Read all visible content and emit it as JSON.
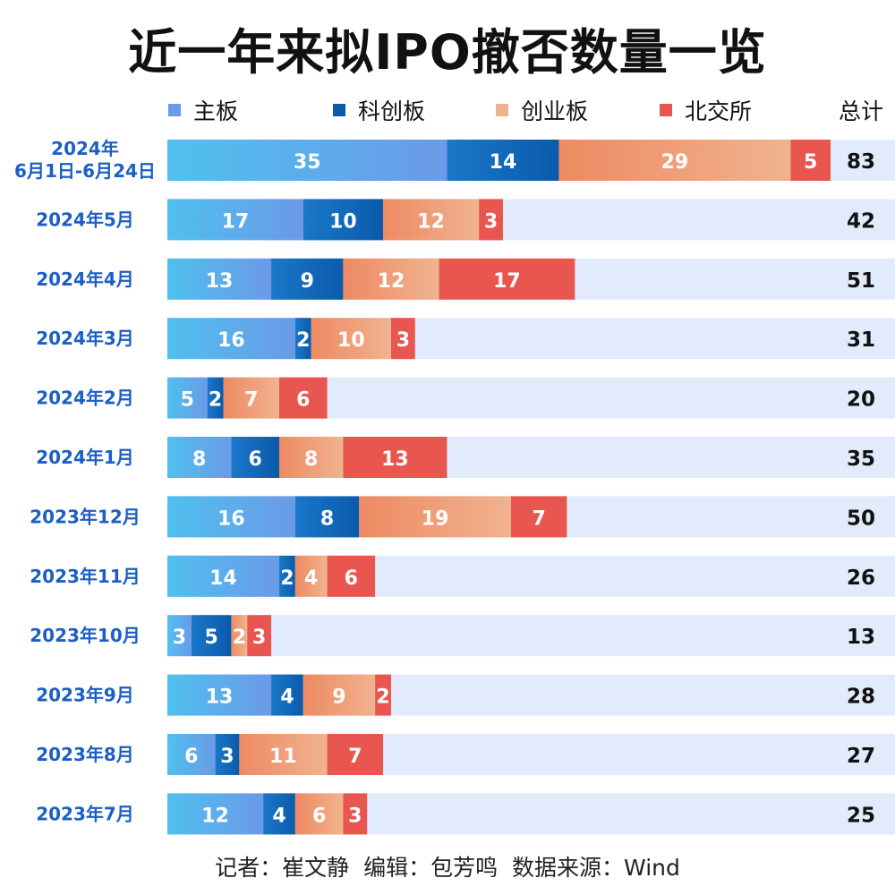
{
  "title": "近一年来拟IPO撤否数量一览",
  "legend": {
    "series": [
      "主板",
      "科创板",
      "创业板",
      "北交所"
    ],
    "total_label": "总计"
  },
  "footer": {
    "reporter": "记者：崔文静",
    "editor": "编辑：包芳鸣",
    "source": "数据来源：Wind"
  },
  "colors": {
    "main_board_start": "#4fc0ee",
    "main_board_end": "#6b9ae8",
    "star_start": "#1a78c8",
    "star_end": "#0b5aab",
    "chinext_start": "#ee8a62",
    "chinext_end": "#f0b38f",
    "bse": "#e8564f",
    "track": "#e1ebfb",
    "label_blue": "#1c5fc4"
  },
  "chart_data": {
    "type": "bar",
    "orientation": "horizontal",
    "stacked": true,
    "categories": [
      "2024年\n6月1日-6月24日",
      "2024年5月",
      "2024年4月",
      "2024年3月",
      "2024年2月",
      "2024年1月",
      "2023年12月",
      "2023年11月",
      "2023年10月",
      "2023年9月",
      "2023年8月",
      "2023年7月"
    ],
    "series": [
      {
        "name": "主板",
        "values": [
          35,
          17,
          13,
          16,
          5,
          8,
          16,
          14,
          3,
          13,
          6,
          12
        ]
      },
      {
        "name": "科创板",
        "values": [
          14,
          10,
          9,
          2,
          2,
          6,
          8,
          2,
          5,
          4,
          3,
          4
        ]
      },
      {
        "name": "创业板",
        "values": [
          29,
          12,
          12,
          10,
          7,
          8,
          19,
          4,
          2,
          9,
          11,
          6
        ]
      },
      {
        "name": "北交所",
        "values": [
          5,
          3,
          17,
          3,
          6,
          13,
          7,
          6,
          3,
          2,
          7,
          3
        ]
      }
    ],
    "totals": [
      83,
      42,
      51,
      31,
      20,
      35,
      50,
      26,
      13,
      28,
      27,
      25
    ],
    "xlim": [
      0,
      83
    ],
    "legend_position": "top"
  }
}
